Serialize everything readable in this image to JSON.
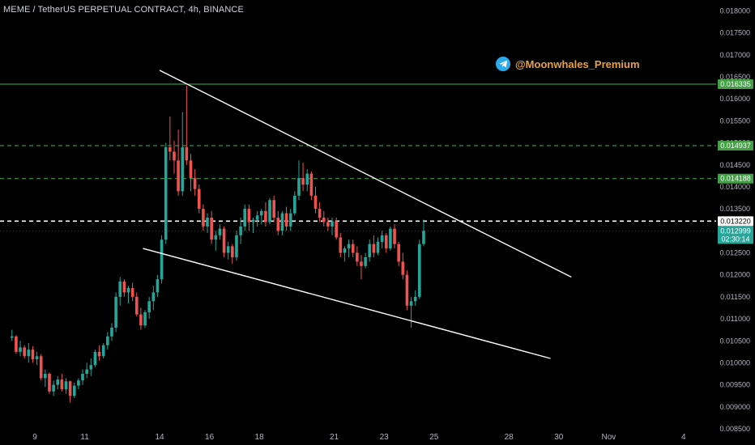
{
  "header": {
    "title": "MEME / TetherUS PERPETUAL CONTRACT, 4h, BINANCE"
  },
  "watermark": {
    "icon": "telegram-icon",
    "text": "@Moonwhales_Premium"
  },
  "colors": {
    "up": "#26a69a",
    "down": "#ef5350",
    "level": "#4caf50",
    "trendline": "#ffffff",
    "axis_text": "#b2b5be"
  },
  "chart_data": {
    "type": "candlestick",
    "title": "MEME / TetherUS PERPETUAL CONTRACT, 4h, BINANCE",
    "ylim": [
      0.0085,
      0.0181
    ],
    "y_ticks": [
      "0.018000",
      "0.017500",
      "0.017000",
      "0.016500",
      "0.016000",
      "0.015500",
      "0.015000",
      "0.014500",
      "0.014000",
      "0.013500",
      "0.013000",
      "0.012500",
      "0.012000",
      "0.011500",
      "0.011000",
      "0.010500",
      "0.010000",
      "0.009500",
      "0.009000",
      "0.008500"
    ],
    "x_ticks": [
      "9",
      "11",
      "14",
      "16",
      "18",
      "21",
      "23",
      "25",
      "28",
      "30",
      "Nov",
      "4"
    ],
    "x_tick_dates": [
      "2024-10-09",
      "2024-10-11",
      "2024-10-14",
      "2024-10-16",
      "2024-10-18",
      "2024-10-21",
      "2024-10-23",
      "2024-10-25",
      "2024-10-28",
      "2024-10-30",
      "2024-11-01",
      "2024-11-04"
    ],
    "candle_start": "2024-10-08T00:00",
    "interval_hours": 4,
    "candles": [
      [
        0.01057,
        0.01075,
        0.0105,
        0.0106
      ],
      [
        0.0106,
        0.01063,
        0.0102,
        0.01025
      ],
      [
        0.01025,
        0.0105,
        0.01015,
        0.01035
      ],
      [
        0.01035,
        0.0104,
        0.0101,
        0.01015
      ],
      [
        0.01015,
        0.01045,
        0.01,
        0.0103
      ],
      [
        0.0103,
        0.01038,
        0.01,
        0.01008
      ],
      [
        0.01008,
        0.01025,
        0.00995,
        0.01015
      ],
      [
        0.01015,
        0.0102,
        0.0096,
        0.00965
      ],
      [
        0.00965,
        0.00985,
        0.00945,
        0.00975
      ],
      [
        0.00975,
        0.00978,
        0.0093,
        0.00935
      ],
      [
        0.00935,
        0.0096,
        0.00925,
        0.0095
      ],
      [
        0.0095,
        0.0097,
        0.0094,
        0.00962
      ],
      [
        0.00962,
        0.00975,
        0.00935,
        0.0094
      ],
      [
        0.0094,
        0.00965,
        0.0093,
        0.00958
      ],
      [
        0.00958,
        0.0096,
        0.0091,
        0.00925
      ],
      [
        0.00925,
        0.00955,
        0.0092,
        0.00948
      ],
      [
        0.00948,
        0.00965,
        0.0094,
        0.0096
      ],
      [
        0.0096,
        0.00985,
        0.0095,
        0.00975
      ],
      [
        0.00975,
        0.01,
        0.00965,
        0.00985
      ],
      [
        0.00985,
        0.0101,
        0.0097,
        0.00995
      ],
      [
        0.00995,
        0.0103,
        0.0099,
        0.01025
      ],
      [
        0.01025,
        0.0104,
        0.01005,
        0.01015
      ],
      [
        0.01015,
        0.01045,
        0.0101,
        0.0104
      ],
      [
        0.0104,
        0.0107,
        0.0103,
        0.0106
      ],
      [
        0.0106,
        0.0109,
        0.0105,
        0.0108
      ],
      [
        0.0108,
        0.0116,
        0.0107,
        0.0115
      ],
      [
        0.0115,
        0.01195,
        0.0113,
        0.01185
      ],
      [
        0.01185,
        0.0119,
        0.0115,
        0.0116
      ],
      [
        0.0116,
        0.01175,
        0.01135,
        0.0117
      ],
      [
        0.0117,
        0.01182,
        0.0114,
        0.0115
      ],
      [
        0.0115,
        0.0116,
        0.01105,
        0.0111
      ],
      [
        0.0111,
        0.01125,
        0.01075,
        0.01085
      ],
      [
        0.01085,
        0.0112,
        0.0108,
        0.01115
      ],
      [
        0.01115,
        0.0115,
        0.011,
        0.0114
      ],
      [
        0.0114,
        0.01175,
        0.0112,
        0.0116
      ],
      [
        0.0116,
        0.012,
        0.0115,
        0.0119
      ],
      [
        0.0119,
        0.0129,
        0.0118,
        0.0128
      ],
      [
        0.0128,
        0.015,
        0.0127,
        0.0149
      ],
      [
        0.0149,
        0.0156,
        0.0146,
        0.0148
      ],
      [
        0.0148,
        0.01505,
        0.0143,
        0.0146
      ],
      [
        0.0146,
        0.0153,
        0.0138,
        0.0139
      ],
      [
        0.0139,
        0.0157,
        0.0138,
        0.0149
      ],
      [
        0.0149,
        0.0163,
        0.0145,
        0.0146
      ],
      [
        0.0146,
        0.01475,
        0.0139,
        0.0142
      ],
      [
        0.0142,
        0.0144,
        0.0138,
        0.01395
      ],
      [
        0.01395,
        0.01405,
        0.0134,
        0.0135
      ],
      [
        0.0135,
        0.0136,
        0.013,
        0.0131
      ],
      [
        0.0131,
        0.0134,
        0.01295,
        0.0133
      ],
      [
        0.0133,
        0.01345,
        0.0127,
        0.0128
      ],
      [
        0.0128,
        0.013,
        0.01255,
        0.0129
      ],
      [
        0.0129,
        0.01315,
        0.0128,
        0.01305
      ],
      [
        0.01305,
        0.0131,
        0.0124,
        0.0125
      ],
      [
        0.0125,
        0.01275,
        0.01235,
        0.01265
      ],
      [
        0.01265,
        0.0127,
        0.01225,
        0.0124
      ],
      [
        0.0124,
        0.013,
        0.01232,
        0.0129
      ],
      [
        0.0129,
        0.0133,
        0.0127,
        0.0131
      ],
      [
        0.0131,
        0.0136,
        0.013,
        0.0135
      ],
      [
        0.0135,
        0.0136,
        0.013,
        0.0132
      ],
      [
        0.0132,
        0.0133,
        0.01295,
        0.01325
      ],
      [
        0.01325,
        0.01345,
        0.0131,
        0.01335
      ],
      [
        0.01335,
        0.0135,
        0.01315,
        0.01345
      ],
      [
        0.01345,
        0.01365,
        0.0131,
        0.0132
      ],
      [
        0.0132,
        0.01375,
        0.01315,
        0.0137
      ],
      [
        0.0137,
        0.0138,
        0.0132,
        0.0133
      ],
      [
        0.0133,
        0.01345,
        0.0129,
        0.013
      ],
      [
        0.013,
        0.01345,
        0.0129,
        0.0134
      ],
      [
        0.0134,
        0.01355,
        0.013,
        0.0131
      ],
      [
        0.0131,
        0.0135,
        0.013,
        0.0134
      ],
      [
        0.0134,
        0.0139,
        0.01335,
        0.0138
      ],
      [
        0.0138,
        0.0146,
        0.0137,
        0.0142
      ],
      [
        0.0142,
        0.01455,
        0.0139,
        0.01405
      ],
      [
        0.01405,
        0.0144,
        0.0139,
        0.0143
      ],
      [
        0.0143,
        0.01435,
        0.0137,
        0.0138
      ],
      [
        0.0138,
        0.014,
        0.0134,
        0.0135
      ],
      [
        0.0135,
        0.01365,
        0.0132,
        0.0133
      ],
      [
        0.0133,
        0.01345,
        0.0131,
        0.0132
      ],
      [
        0.0132,
        0.0133,
        0.013,
        0.0131
      ],
      [
        0.0131,
        0.0133,
        0.0129,
        0.01322
      ],
      [
        0.01322,
        0.0133,
        0.0128,
        0.01285
      ],
      [
        0.01285,
        0.01295,
        0.0124,
        0.0125
      ],
      [
        0.0125,
        0.01265,
        0.0123,
        0.0126
      ],
      [
        0.0126,
        0.0128,
        0.0124,
        0.0127
      ],
      [
        0.0127,
        0.0128,
        0.0124,
        0.0125
      ],
      [
        0.0125,
        0.01265,
        0.0122,
        0.0123
      ],
      [
        0.0123,
        0.01245,
        0.0119,
        0.0122
      ],
      [
        0.0122,
        0.0125,
        0.01215,
        0.0124
      ],
      [
        0.0124,
        0.0128,
        0.0123,
        0.0127
      ],
      [
        0.0127,
        0.0129,
        0.0124,
        0.0125
      ],
      [
        0.0125,
        0.01285,
        0.01245,
        0.01275
      ],
      [
        0.01275,
        0.013,
        0.0126,
        0.0129
      ],
      [
        0.0129,
        0.01295,
        0.0125,
        0.0126
      ],
      [
        0.0126,
        0.0131,
        0.01255,
        0.01305
      ],
      [
        0.01305,
        0.01315,
        0.0126,
        0.0127
      ],
      [
        0.0127,
        0.01275,
        0.0122,
        0.0123
      ],
      [
        0.0123,
        0.0125,
        0.0119,
        0.012
      ],
      [
        0.012,
        0.0121,
        0.0112,
        0.0113
      ],
      [
        0.0113,
        0.0115,
        0.0108,
        0.0114
      ],
      [
        0.0114,
        0.01165,
        0.0113,
        0.0115
      ],
      [
        0.0115,
        0.0128,
        0.01145,
        0.0127
      ],
      [
        0.0127,
        0.01325,
        0.01265,
        0.013
      ]
    ],
    "horizontal_levels": [
      {
        "price": 0.016335,
        "label": "0.016335",
        "style": "solid"
      },
      {
        "price": 0.014937,
        "label": "0.014937",
        "style": "dashed"
      },
      {
        "price": 0.014188,
        "label": "0.014188",
        "style": "dashed"
      }
    ],
    "marker_line": {
      "price": 0.01322,
      "label": "0.013220"
    },
    "current_price": {
      "price": 0.012999,
      "label": "0.012999",
      "countdown": "02:30:14"
    },
    "trendlines": [
      {
        "name": "upper",
        "p1": {
          "x": "2024-10-14T00:00",
          "y": 0.01665
        },
        "p2": {
          "x": "2024-10-30T12:00",
          "y": 0.01195
        }
      },
      {
        "name": "lower",
        "p1": {
          "x": "2024-10-13T08:00",
          "y": 0.0126
        },
        "p2": {
          "x": "2024-10-29T16:00",
          "y": 0.0101
        }
      }
    ]
  }
}
